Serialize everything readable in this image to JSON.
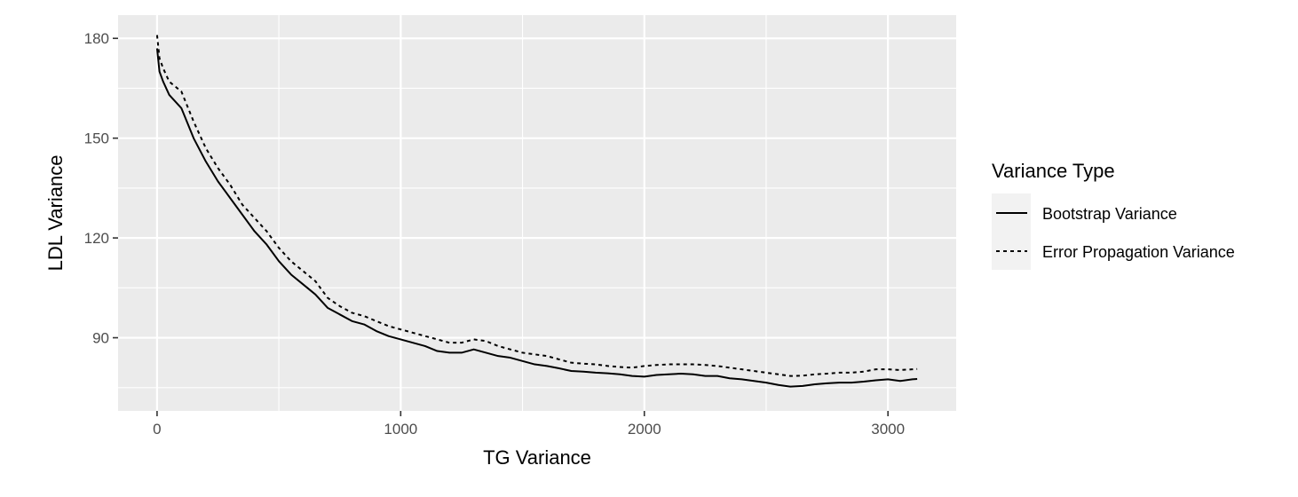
{
  "chart_data": {
    "type": "line",
    "xlabel": "TG Variance",
    "ylabel": "LDL Variance",
    "xlim": [
      -160,
      3280
    ],
    "ylim": [
      68,
      187
    ],
    "x_ticks": [
      0,
      1000,
      2000,
      3000
    ],
    "y_ticks": [
      90,
      120,
      150,
      180
    ],
    "grid": true,
    "legend": {
      "title": "Variance Type",
      "position": "right"
    },
    "series": [
      {
        "name": "Bootstrap Variance",
        "line_style": "solid",
        "color": "#000000",
        "points": [
          [
            0,
            177
          ],
          [
            10,
            170
          ],
          [
            25,
            167
          ],
          [
            50,
            163
          ],
          [
            100,
            159
          ],
          [
            150,
            150
          ],
          [
            200,
            143
          ],
          [
            250,
            137
          ],
          [
            300,
            132
          ],
          [
            350,
            127
          ],
          [
            400,
            122
          ],
          [
            450,
            118
          ],
          [
            500,
            113
          ],
          [
            550,
            109
          ],
          [
            600,
            106
          ],
          [
            650,
            103
          ],
          [
            700,
            99
          ],
          [
            750,
            97
          ],
          [
            800,
            95
          ],
          [
            850,
            94
          ],
          [
            900,
            92
          ],
          [
            950,
            90.5
          ],
          [
            1000,
            89.5
          ],
          [
            1050,
            88.5
          ],
          [
            1100,
            87.5
          ],
          [
            1150,
            86
          ],
          [
            1200,
            85.5
          ],
          [
            1250,
            85.5
          ],
          [
            1300,
            86.5
          ],
          [
            1350,
            85.5
          ],
          [
            1400,
            84.5
          ],
          [
            1450,
            84
          ],
          [
            1500,
            83
          ],
          [
            1550,
            82
          ],
          [
            1600,
            81.5
          ],
          [
            1650,
            80.8
          ],
          [
            1700,
            80
          ],
          [
            1750,
            79.8
          ],
          [
            1800,
            79.5
          ],
          [
            1850,
            79.3
          ],
          [
            1900,
            79
          ],
          [
            1950,
            78.5
          ],
          [
            2000,
            78.3
          ],
          [
            2050,
            78.8
          ],
          [
            2100,
            79
          ],
          [
            2150,
            79.2
          ],
          [
            2200,
            79
          ],
          [
            2250,
            78.5
          ],
          [
            2300,
            78.5
          ],
          [
            2350,
            77.8
          ],
          [
            2400,
            77.5
          ],
          [
            2450,
            77
          ],
          [
            2500,
            76.5
          ],
          [
            2550,
            75.8
          ],
          [
            2600,
            75.3
          ],
          [
            2650,
            75.5
          ],
          [
            2700,
            76
          ],
          [
            2750,
            76.3
          ],
          [
            2800,
            76.5
          ],
          [
            2850,
            76.5
          ],
          [
            2900,
            76.8
          ],
          [
            2950,
            77.2
          ],
          [
            3000,
            77.5
          ],
          [
            3050,
            77
          ],
          [
            3100,
            77.5
          ],
          [
            3120,
            77.6
          ]
        ]
      },
      {
        "name": "Error Propagation Variance",
        "line_style": "dashed",
        "color": "#000000",
        "points": [
          [
            0,
            181
          ],
          [
            10,
            174
          ],
          [
            25,
            171
          ],
          [
            50,
            167
          ],
          [
            100,
            164
          ],
          [
            150,
            155
          ],
          [
            200,
            147
          ],
          [
            250,
            141
          ],
          [
            300,
            136
          ],
          [
            350,
            130
          ],
          [
            400,
            126
          ],
          [
            450,
            122
          ],
          [
            500,
            117
          ],
          [
            550,
            113
          ],
          [
            600,
            110
          ],
          [
            650,
            107
          ],
          [
            700,
            102
          ],
          [
            750,
            99.5
          ],
          [
            800,
            97.5
          ],
          [
            850,
            96.5
          ],
          [
            900,
            95
          ],
          [
            950,
            93.5
          ],
          [
            1000,
            92.5
          ],
          [
            1050,
            91.5
          ],
          [
            1100,
            90.5
          ],
          [
            1150,
            89.5
          ],
          [
            1200,
            88.5
          ],
          [
            1250,
            88.5
          ],
          [
            1300,
            89.5
          ],
          [
            1350,
            89
          ],
          [
            1400,
            87.5
          ],
          [
            1450,
            86.5
          ],
          [
            1500,
            85.5
          ],
          [
            1550,
            85
          ],
          [
            1600,
            84.5
          ],
          [
            1650,
            83.5
          ],
          [
            1700,
            82.5
          ],
          [
            1750,
            82.2
          ],
          [
            1800,
            82
          ],
          [
            1850,
            81.5
          ],
          [
            1900,
            81.2
          ],
          [
            1950,
            81
          ],
          [
            2000,
            81.5
          ],
          [
            2050,
            81.8
          ],
          [
            2100,
            82
          ],
          [
            2150,
            82
          ],
          [
            2200,
            82
          ],
          [
            2250,
            81.8
          ],
          [
            2300,
            81.5
          ],
          [
            2350,
            81
          ],
          [
            2400,
            80.5
          ],
          [
            2450,
            80
          ],
          [
            2500,
            79.5
          ],
          [
            2550,
            79
          ],
          [
            2600,
            78.5
          ],
          [
            2650,
            78.6
          ],
          [
            2700,
            79
          ],
          [
            2750,
            79.2
          ],
          [
            2800,
            79.5
          ],
          [
            2850,
            79.5
          ],
          [
            2900,
            79.8
          ],
          [
            2950,
            80.5
          ],
          [
            3000,
            80.5
          ],
          [
            3050,
            80.3
          ],
          [
            3100,
            80.5
          ],
          [
            3120,
            80.6
          ]
        ]
      }
    ]
  }
}
